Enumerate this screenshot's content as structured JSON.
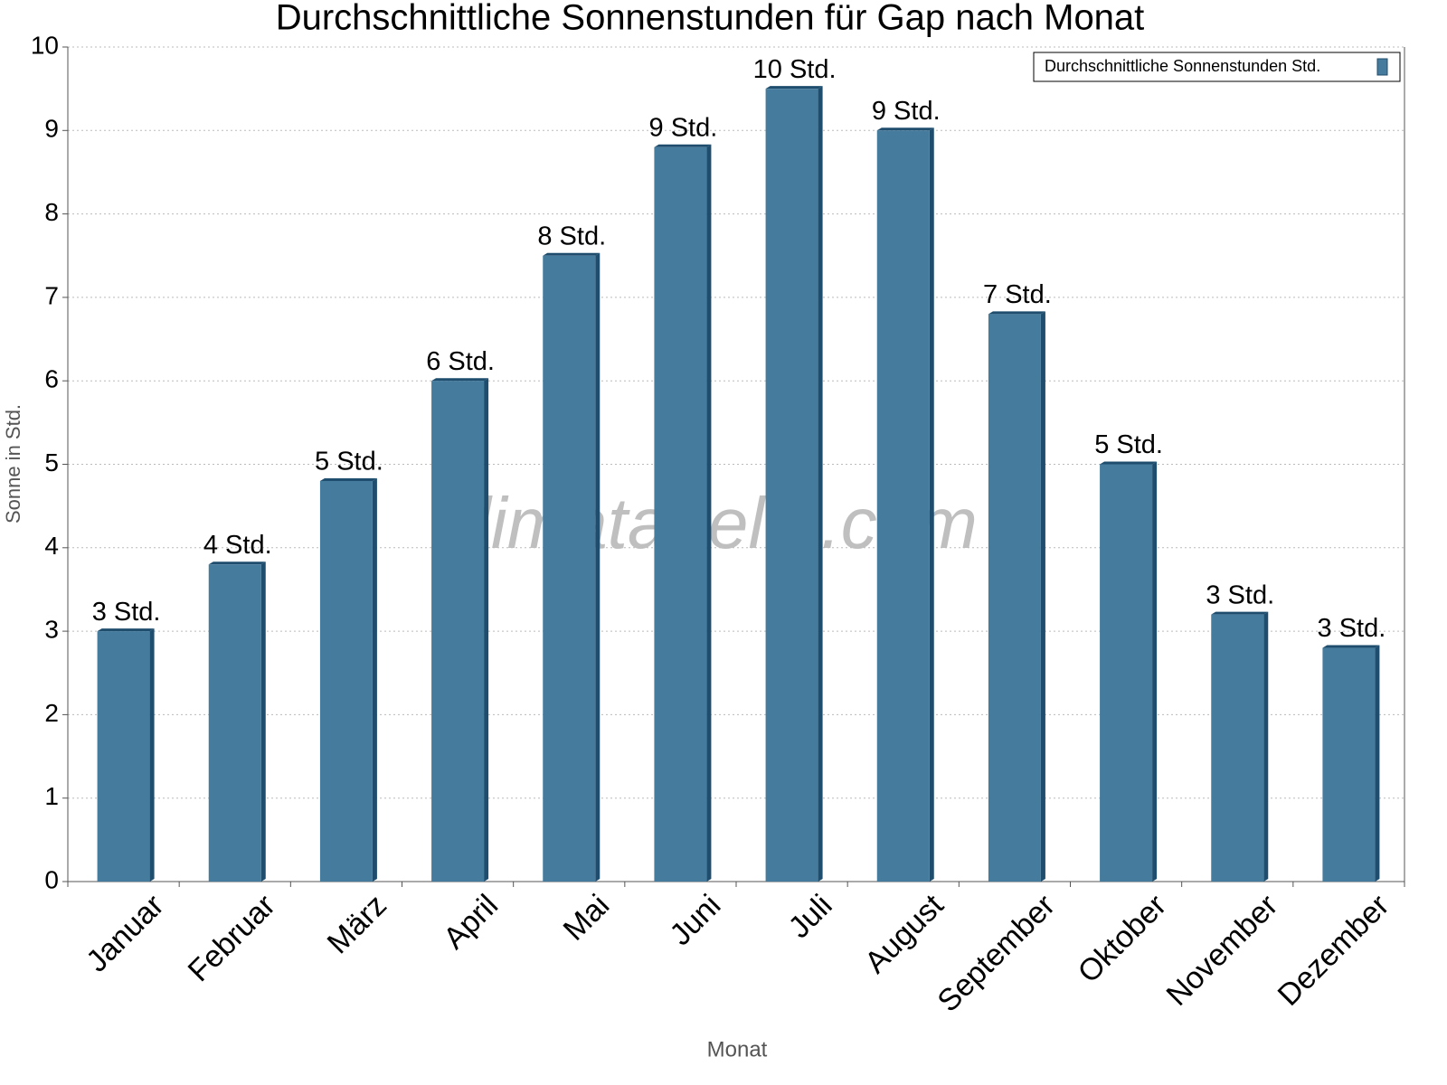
{
  "chart_data": {
    "type": "bar",
    "title": "Durchschnittliche Sonnenstunden für Gap nach Monat",
    "x_label": "Monat",
    "y_label": "Sonne in Std.",
    "watermark": "klimatabelle.com",
    "categories": [
      "Januar",
      "Februar",
      "März",
      "April",
      "Mai",
      "Juni",
      "Juli",
      "August",
      "September",
      "Oktober",
      "November",
      "Dezember"
    ],
    "series": [
      {
        "name": "Durchschnittliche Sonnenstunden Std.",
        "color": "#457b9d",
        "values": [
          3.0,
          3.8,
          4.8,
          6.0,
          7.5,
          8.8,
          9.5,
          9.0,
          6.8,
          5.0,
          3.2,
          2.8
        ],
        "value_labels": [
          "3 Std.",
          "4 Std.",
          "5 Std.",
          "6 Std.",
          "8 Std.",
          "9 Std.",
          "10 Std.",
          "9 Std.",
          "7 Std.",
          "5 Std.",
          "3 Std.",
          "3 Std."
        ]
      }
    ],
    "ylim": [
      0,
      10
    ],
    "yticks": [
      0,
      1,
      2,
      3,
      4,
      5,
      6,
      7,
      8,
      9,
      10
    ],
    "grid": true,
    "legend": "top-right"
  }
}
